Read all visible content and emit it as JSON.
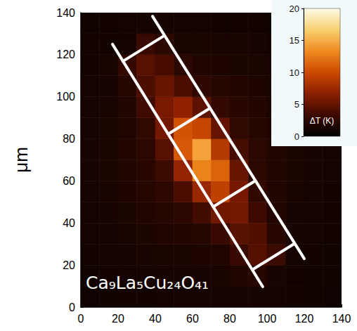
{
  "chart_data": {
    "type": "heatmap",
    "annotation": "Ca₉La₅Cu₂₄O₄₁",
    "y_label": "μm",
    "xlim": [
      0,
      140
    ],
    "xticks": [
      0,
      20,
      40,
      60,
      80,
      100,
      120,
      140
    ],
    "ylim": [
      0,
      140
    ],
    "yticks": [
      0,
      20,
      40,
      60,
      80,
      100,
      120,
      140
    ],
    "grid": false,
    "cells": {
      "x": [
        5,
        15,
        25,
        35,
        45,
        55,
        65,
        75,
        85,
        95,
        105,
        115,
        125,
        135
      ],
      "y": [
        5,
        15,
        25,
        35,
        45,
        55,
        65,
        75,
        85,
        95,
        105,
        115,
        125,
        135
      ],
      "values": [
        [
          0.8,
          0.9,
          1.0,
          1.0,
          1.1,
          1.1,
          1.2,
          1.2,
          1.2,
          1.2,
          1.1,
          1.0,
          0.9,
          0.8
        ],
        [
          0.9,
          1.0,
          1.1,
          1.2,
          1.3,
          1.3,
          1.3,
          1.4,
          1.8,
          2.0,
          1.3,
          1.0,
          0.9,
          0.9
        ],
        [
          1.0,
          1.1,
          1.2,
          1.4,
          1.5,
          1.6,
          1.7,
          1.8,
          3.0,
          4.4,
          3.2,
          1.1,
          1.0,
          0.9
        ],
        [
          1.1,
          1.2,
          1.4,
          1.6,
          1.8,
          1.9,
          2.1,
          3.0,
          4.6,
          4.2,
          2.2,
          1.3,
          1.1,
          1.0
        ],
        [
          1.1,
          1.3,
          1.6,
          1.8,
          2.1,
          2.4,
          3.6,
          5.6,
          5.7,
          3.3,
          1.8,
          1.3,
          1.1,
          1.0
        ],
        [
          1.2,
          1.4,
          1.7,
          2.1,
          2.5,
          3.9,
          7.4,
          9.3,
          5.8,
          2.7,
          1.8,
          1.4,
          1.2,
          1.0
        ],
        [
          1.3,
          1.5,
          1.8,
          2.2,
          3.2,
          7.2,
          13.0,
          11.3,
          5.1,
          2.4,
          1.8,
          1.5,
          1.3,
          1.1
        ],
        [
          1.3,
          1.5,
          1.9,
          2.4,
          4.5,
          10.8,
          14.5,
          8.8,
          3.7,
          2.3,
          1.8,
          1.5,
          1.3,
          1.1
        ],
        [
          1.2,
          1.5,
          1.8,
          2.6,
          5.7,
          10.5,
          9.7,
          5.0,
          2.7,
          2.1,
          1.8,
          1.5,
          1.2,
          1.1
        ],
        [
          1.2,
          1.4,
          1.8,
          3.4,
          5.9,
          7.0,
          4.7,
          2.8,
          2.2,
          1.9,
          1.6,
          1.4,
          1.2,
          1.0
        ],
        [
          1.1,
          1.3,
          2.0,
          4.0,
          5.2,
          3.9,
          2.5,
          2.1,
          1.9,
          1.7,
          1.5,
          1.3,
          1.1,
          1.0
        ],
        [
          1.0,
          1.4,
          2.8,
          4.5,
          3.8,
          2.3,
          1.8,
          1.7,
          1.6,
          1.5,
          1.3,
          1.2,
          1.0,
          0.9
        ],
        [
          1.0,
          1.0,
          1.1,
          3.0,
          2.3,
          1.5,
          1.5,
          1.4,
          1.4,
          1.3,
          1.1,
          1.0,
          1.0,
          0.9
        ],
        [
          0.9,
          1.0,
          1.1,
          1.2,
          1.2,
          1.1,
          1.1,
          1.0,
          1.0,
          1.0,
          0.9,
          0.9,
          0.8,
          0.8
        ]
      ]
    },
    "colorbar": {
      "label": "ΔT (K)",
      "lim": [
        0,
        20
      ],
      "ticks": [
        0,
        5,
        10,
        15,
        20
      ]
    }
  }
}
